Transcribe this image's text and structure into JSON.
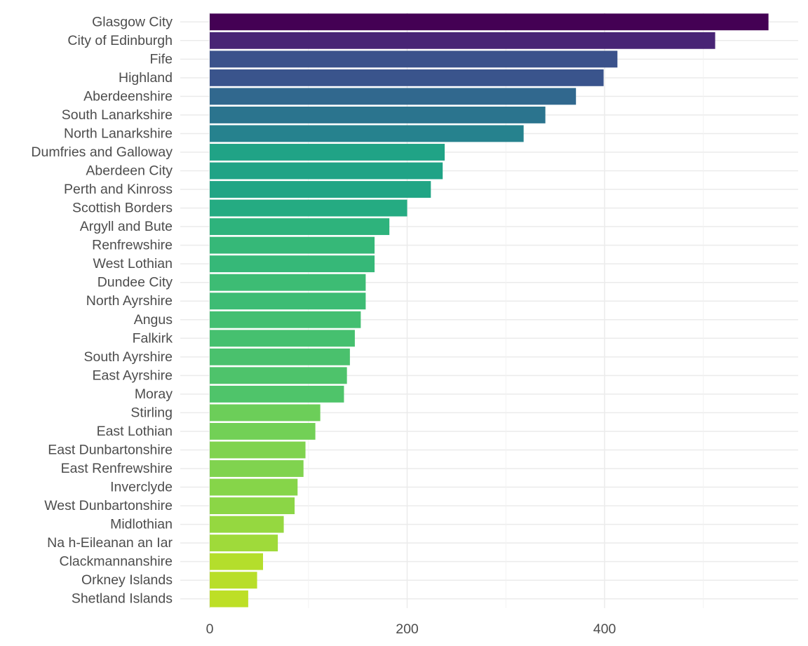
{
  "chart_data": {
    "type": "bar",
    "orientation": "horizontal",
    "title": "",
    "xlabel": "",
    "ylabel": "",
    "xlim": [
      0,
      580
    ],
    "x_ticks": [
      0,
      200,
      400
    ],
    "grid": true,
    "legend": "none",
    "color_scale": "viridis",
    "categories": [
      "Glasgow City",
      "City of Edinburgh",
      "Fife",
      "Highland",
      "Aberdeenshire",
      "South Lanarkshire",
      "North Lanarkshire",
      "Dumfries and Galloway",
      "Aberdeen City",
      "Perth and Kinross",
      "Scottish Borders",
      "Argyll and Bute",
      "Renfrewshire",
      "West Lothian",
      "Dundee City",
      "North Ayrshire",
      "Angus",
      "Falkirk",
      "South Ayrshire",
      "East Ayrshire",
      "Moray",
      "Stirling",
      "East Lothian",
      "East Dunbartonshire",
      "East Renfrewshire",
      "Inverclyde",
      "West Dunbartonshire",
      "Midlothian",
      "Na h-Eileanan an Iar",
      "Clackmannanshire",
      "Orkney Islands",
      "Shetland Islands"
    ],
    "values": [
      566,
      512,
      413,
      399,
      371,
      340,
      318,
      238,
      236,
      224,
      200,
      182,
      167,
      167,
      158,
      158,
      153,
      147,
      142,
      139,
      136,
      112,
      107,
      97,
      95,
      89,
      86,
      75,
      69,
      54,
      48,
      39
    ],
    "colors": [
      "#440154",
      "#482475",
      "#3b528b",
      "#3a548c",
      "#31688e",
      "#2b748e",
      "#26828e",
      "#20a386",
      "#20a386",
      "#21a585",
      "#25ab82",
      "#2eb37c",
      "#36b878",
      "#36b878",
      "#3dbc74",
      "#3dbc74",
      "#43bf71",
      "#46c06f",
      "#4ac16d",
      "#4ec36b",
      "#4fc46a",
      "#6cce59",
      "#72d056",
      "#80d34f",
      "#80d34f",
      "#86d549",
      "#8bd646",
      "#95d840",
      "#9fda3a",
      "#b4de2c",
      "#b8de29",
      "#bddf26"
    ]
  }
}
